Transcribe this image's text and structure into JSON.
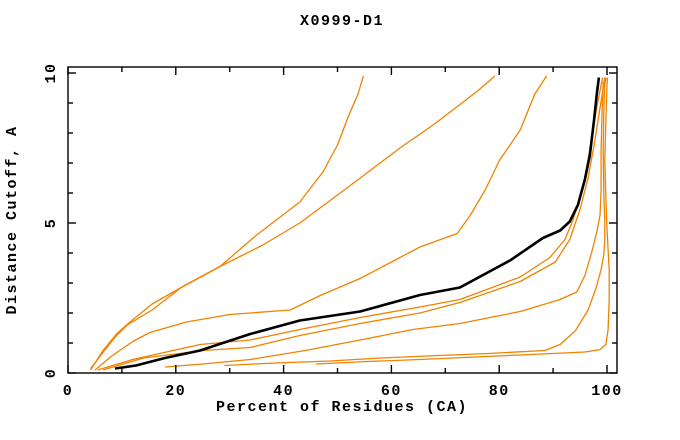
{
  "title": "X0999-D1",
  "axes": {
    "x_label": "Percent of Residues (CA)",
    "y_label": "Distance Cutoff, A",
    "x_tick_labels": [
      "0",
      "20",
      "40",
      "60",
      "80",
      "100"
    ],
    "y_tick_labels": [
      "0",
      "5",
      "10"
    ]
  },
  "colors": {
    "model": "#ef8300",
    "reference": "#000000",
    "frame": "#000000",
    "background": "#ffffff"
  },
  "chart_data": {
    "type": "line",
    "title": "X0999-D1",
    "xlabel": "Percent of Residues (CA)",
    "ylabel": "Distance Cutoff, A",
    "xlim": [
      0,
      101.8
    ],
    "ylim": [
      0,
      10.2
    ],
    "x_major_ticks": [
      0,
      20,
      40,
      60,
      80,
      100
    ],
    "x_minor_ticks": [
      10,
      30,
      50,
      70,
      90
    ],
    "y_major_ticks": [
      0,
      5,
      10
    ],
    "y_minor_ticks": [
      1,
      2,
      3,
      4,
      6,
      7,
      8,
      9
    ],
    "grid": false,
    "legend": "none",
    "series": [
      {
        "name": "model-curve-1",
        "color": "#ef8300",
        "width": 1.3,
        "points": [
          [
            4.2,
            0.15
          ],
          [
            5.5,
            0.45
          ],
          [
            7.0,
            0.8
          ],
          [
            9.0,
            1.25
          ],
          [
            11.0,
            1.6
          ],
          [
            15.6,
            2.1
          ],
          [
            21.0,
            2.85
          ],
          [
            28.2,
            3.55
          ],
          [
            35.0,
            4.6
          ],
          [
            43.0,
            5.7
          ],
          [
            47.3,
            6.7
          ],
          [
            50.0,
            7.6
          ],
          [
            52.0,
            8.55
          ],
          [
            53.8,
            9.3
          ],
          [
            54.8,
            9.9
          ]
        ]
      },
      {
        "name": "model-curve-2",
        "color": "#ef8300",
        "width": 1.3,
        "points": [
          [
            4.2,
            0.1
          ],
          [
            6.5,
            0.75
          ],
          [
            9.0,
            1.3
          ],
          [
            11.5,
            1.7
          ],
          [
            15.6,
            2.3
          ],
          [
            22.0,
            2.95
          ],
          [
            28.2,
            3.55
          ],
          [
            36.0,
            4.25
          ],
          [
            43.0,
            5.0
          ],
          [
            52.0,
            6.2
          ],
          [
            61.6,
            7.5
          ],
          [
            68.0,
            8.3
          ],
          [
            72.7,
            8.95
          ],
          [
            76.0,
            9.4
          ],
          [
            79.2,
            9.9
          ]
        ]
      },
      {
        "name": "model-curve-3",
        "color": "#ef8300",
        "width": 1.3,
        "points": [
          [
            5.0,
            0.1
          ],
          [
            8.0,
            0.55
          ],
          [
            12.0,
            1.05
          ],
          [
            15.2,
            1.35
          ],
          [
            22.0,
            1.7
          ],
          [
            30.0,
            1.95
          ],
          [
            41.2,
            2.1
          ],
          [
            47.0,
            2.6
          ],
          [
            54.2,
            3.15
          ],
          [
            60.0,
            3.7
          ],
          [
            65.3,
            4.2
          ],
          [
            72.2,
            4.65
          ],
          [
            74.6,
            5.25
          ],
          [
            77.4,
            6.1
          ],
          [
            80.1,
            7.1
          ],
          [
            83.9,
            8.1
          ],
          [
            86.6,
            9.3
          ],
          [
            88.8,
            9.9
          ]
        ]
      },
      {
        "name": "model-curve-4",
        "color": "#ef8300",
        "width": 1.3,
        "points": [
          [
            5.5,
            0.1
          ],
          [
            12.0,
            0.45
          ],
          [
            24.5,
            0.95
          ],
          [
            33.8,
            1.1
          ],
          [
            43.0,
            1.45
          ],
          [
            54.2,
            1.85
          ],
          [
            65.3,
            2.2
          ],
          [
            72.7,
            2.45
          ],
          [
            83.9,
            3.2
          ],
          [
            89.4,
            3.85
          ],
          [
            92.2,
            4.45
          ],
          [
            93.7,
            5.1
          ],
          [
            95.5,
            6.15
          ],
          [
            96.8,
            7.45
          ],
          [
            98.0,
            8.75
          ],
          [
            98.9,
            9.6
          ],
          [
            99.2,
            9.85
          ]
        ]
      },
      {
        "name": "model-curve-5",
        "color": "#ef8300",
        "width": 1.3,
        "points": [
          [
            6.5,
            0.1
          ],
          [
            14.0,
            0.5
          ],
          [
            25.0,
            0.75
          ],
          [
            33.8,
            0.85
          ],
          [
            43.0,
            1.25
          ],
          [
            54.2,
            1.65
          ],
          [
            65.3,
            2.0
          ],
          [
            72.7,
            2.35
          ],
          [
            83.9,
            3.05
          ],
          [
            90.4,
            3.7
          ],
          [
            93.1,
            4.45
          ],
          [
            95.0,
            5.45
          ],
          [
            96.5,
            6.5
          ],
          [
            97.6,
            7.6
          ],
          [
            98.5,
            8.6
          ],
          [
            99.3,
            9.5
          ],
          [
            99.6,
            9.85
          ]
        ]
      },
      {
        "name": "model-curve-6",
        "color": "#ef8300",
        "width": 1.3,
        "points": [
          [
            18.0,
            0.2
          ],
          [
            25.0,
            0.3
          ],
          [
            33.8,
            0.45
          ],
          [
            44.0,
            0.75
          ],
          [
            54.2,
            1.1
          ],
          [
            64.0,
            1.45
          ],
          [
            72.7,
            1.65
          ],
          [
            83.9,
            2.05
          ],
          [
            91.3,
            2.45
          ],
          [
            94.4,
            2.7
          ],
          [
            95.9,
            3.25
          ],
          [
            97.2,
            4.05
          ],
          [
            98.1,
            4.7
          ],
          [
            98.7,
            5.25
          ],
          [
            98.9,
            6.1
          ],
          [
            98.9,
            7.45
          ],
          [
            99.1,
            8.75
          ],
          [
            99.3,
            9.7
          ]
        ]
      },
      {
        "name": "model-curve-7",
        "color": "#ef8300",
        "width": 1.3,
        "points": [
          [
            29.0,
            0.25
          ],
          [
            38.0,
            0.33
          ],
          [
            48.6,
            0.4
          ],
          [
            58.0,
            0.5
          ],
          [
            67.2,
            0.57
          ],
          [
            78.0,
            0.65
          ],
          [
            88.5,
            0.75
          ],
          [
            91.3,
            0.95
          ],
          [
            94.1,
            1.4
          ],
          [
            96.5,
            2.1
          ],
          [
            98.0,
            2.85
          ],
          [
            98.9,
            3.45
          ],
          [
            99.4,
            3.95
          ],
          [
            99.6,
            4.45
          ],
          [
            99.6,
            5.1
          ],
          [
            99.4,
            5.95
          ],
          [
            99.3,
            7.45
          ],
          [
            99.4,
            8.75
          ],
          [
            99.6,
            9.6
          ],
          [
            99.8,
            9.85
          ]
        ]
      },
      {
        "name": "model-curve-8",
        "color": "#ef8300",
        "width": 1.3,
        "points": [
          [
            46.0,
            0.3
          ],
          [
            55.0,
            0.38
          ],
          [
            65.3,
            0.45
          ],
          [
            75.0,
            0.53
          ],
          [
            83.9,
            0.6
          ],
          [
            95.9,
            0.7
          ],
          [
            98.7,
            0.78
          ],
          [
            99.8,
            0.95
          ],
          [
            100.2,
            1.45
          ],
          [
            100.4,
            2.45
          ],
          [
            100.4,
            3.45
          ],
          [
            100.2,
            4.1
          ],
          [
            100.0,
            4.8
          ],
          [
            99.8,
            5.8
          ],
          [
            99.6,
            7.1
          ],
          [
            99.8,
            8.45
          ],
          [
            100.0,
            9.6
          ],
          [
            100.1,
            9.85
          ]
        ]
      },
      {
        "name": "reference-curve",
        "color": "#000000",
        "width": 2.6,
        "points": [
          [
            8.7,
            0.15
          ],
          [
            12.6,
            0.25
          ],
          [
            18.0,
            0.5
          ],
          [
            24.5,
            0.75
          ],
          [
            33.8,
            1.3
          ],
          [
            43.0,
            1.75
          ],
          [
            54.2,
            2.05
          ],
          [
            65.3,
            2.6
          ],
          [
            72.7,
            2.85
          ],
          [
            82.0,
            3.75
          ],
          [
            88.1,
            4.5
          ],
          [
            91.3,
            4.75
          ],
          [
            93.1,
            5.05
          ],
          [
            94.6,
            5.6
          ],
          [
            95.9,
            6.45
          ],
          [
            96.8,
            7.25
          ],
          [
            97.6,
            8.45
          ],
          [
            98.1,
            9.3
          ],
          [
            98.5,
            9.85
          ]
        ]
      }
    ]
  }
}
